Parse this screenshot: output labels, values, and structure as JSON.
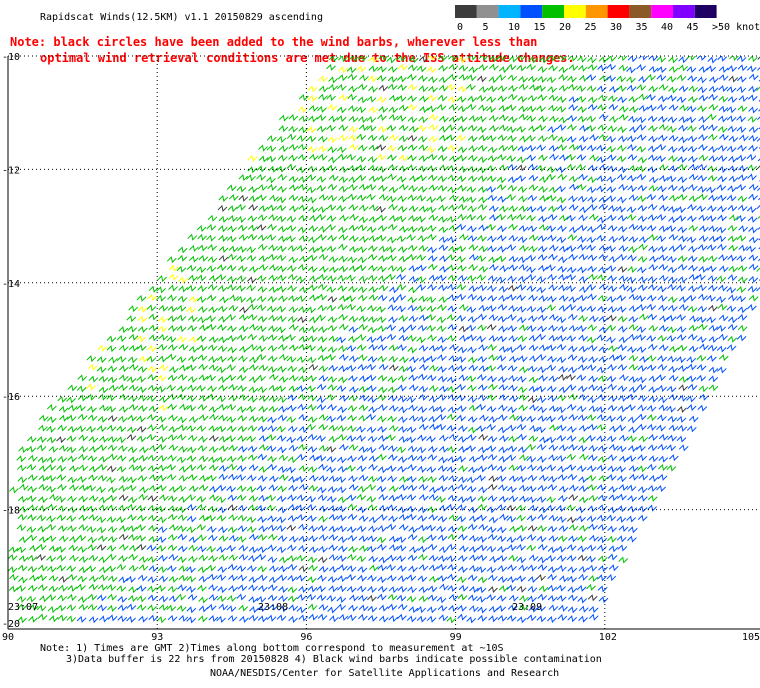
{
  "header": {
    "title": "Rapidscat Winds(12.5KM) v1.1 20150829 ascending",
    "note_line1": "Note: black circles have been added to the wind barbs, wherever less than",
    "note_line2": "optimal wind retrieval conditions are met due to the ISS attitude changes."
  },
  "legend": {
    "labels": [
      "0",
      "5",
      "10",
      "15",
      "20",
      "25",
      "30",
      "35",
      "40",
      "45",
      ">50 knots"
    ],
    "colors": [
      "#3c3c3c",
      "#909090",
      "#00b4ff",
      "#0050ff",
      "#00c000",
      "#ffff00",
      "#ff9600",
      "#ff0000",
      "#8c5a28",
      "#ff00ff",
      "#8000ff",
      "#1e0064"
    ]
  },
  "chart_data": {
    "type": "wind_barb_map",
    "x_ticks": [
      "90",
      "93",
      "96",
      "99",
      "102",
      "105"
    ],
    "y_ticks": [
      "-10",
      "-12",
      "-14",
      "-16",
      "-18",
      "-20"
    ],
    "xlim": [
      90,
      105
    ],
    "ylim": [
      -20,
      -10
    ],
    "grid": true,
    "swath_times": [
      "23:07",
      "23:08",
      "23:09"
    ],
    "series": [
      {
        "color": "#00c000",
        "region": "western and northern swath"
      },
      {
        "color": "#ffff00",
        "region": "northwestern patches"
      },
      {
        "color": "#0050ff",
        "region": "southeastern swath"
      },
      {
        "color": "#3c3c3c",
        "region": "scattered contaminated barbs"
      }
    ]
  },
  "footer": {
    "note1": "Note: 1) Times are GMT 2)Times along bottom correspond to measurement at ~10S",
    "note2": "3)Data buffer is 22 hrs from 20150828 4) Black wind barbs indicate possible contamination",
    "credit": "NOAA/NESDIS/Center for Satellite Applications and Research"
  }
}
